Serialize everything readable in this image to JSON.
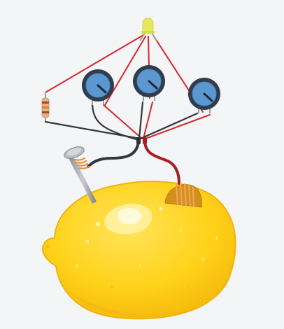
{
  "circuit": {
    "components": [
      {
        "id": "led",
        "icon": "led-icon",
        "color": "#e6e85a"
      },
      {
        "id": "resistor",
        "icon": "resistor-icon",
        "bands": [
          "#c0392b",
          "#e67e22",
          "#c0392b"
        ]
      },
      {
        "id": "potentiometer-1",
        "icon": "dial-icon"
      },
      {
        "id": "potentiometer-2",
        "icon": "dial-icon"
      },
      {
        "id": "potentiometer-3",
        "icon": "dial-icon"
      },
      {
        "id": "zinc-nail",
        "icon": "nail-icon"
      },
      {
        "id": "copper-coin",
        "icon": "coin-icon",
        "color": "#d4901a"
      },
      {
        "id": "lemon",
        "icon": "lemon-icon",
        "color": "#ffd21a"
      }
    ],
    "wire_colors": {
      "positive": "#d9262c",
      "negative": "#33373b",
      "lead": "#9e9e9e"
    },
    "dial_colors": {
      "face": "#5b97d1",
      "rim": "#2f3d4c",
      "pointer": "#1e2833"
    }
  }
}
